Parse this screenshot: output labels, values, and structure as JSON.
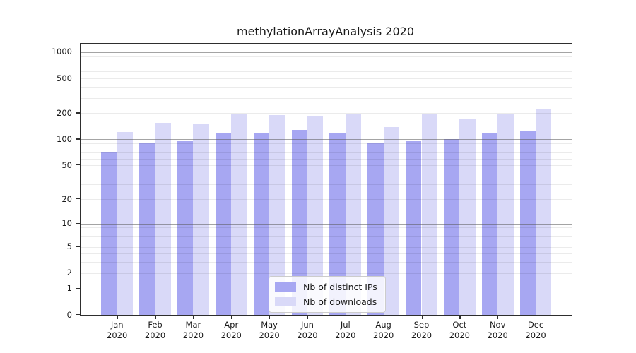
{
  "chart_data": {
    "type": "bar",
    "title": "methylationArrayAnalysis 2020",
    "year_label": "2020",
    "categories": [
      "Jan",
      "Feb",
      "Mar",
      "Apr",
      "May",
      "Jun",
      "Jul",
      "Aug",
      "Sep",
      "Oct",
      "Nov",
      "Dec"
    ],
    "series": [
      {
        "name": "Nb of distinct IPs",
        "color": "#a7a7f2",
        "values": [
          70,
          91,
          96,
          118,
          120,
          129,
          120,
          90,
          95,
          101,
          120,
          126
        ]
      },
      {
        "name": "Nb of downloads",
        "color": "#d9d9f8",
        "values": [
          122,
          154,
          151,
          197,
          191,
          183,
          197,
          139,
          196,
          171,
          194,
          220
        ]
      }
    ],
    "y_axis": {
      "scale": "symlog: y proportional to log10(1+value)",
      "ticks": [
        1000,
        500,
        200,
        100,
        50,
        20,
        10,
        5,
        2,
        1,
        0
      ],
      "major_gridlines": [
        1,
        10,
        100,
        1000
      ],
      "ylim": [
        0,
        1250
      ]
    },
    "x_axis": {
      "label_format": "two lines: month over year"
    },
    "legend": {
      "position": "inside bottom-center",
      "entries": [
        "Nb of distinct IPs",
        "Nb of downloads"
      ]
    },
    "grid": "horizontal major + log minor gridlines, drawn over bars",
    "background": "#ffffff"
  }
}
